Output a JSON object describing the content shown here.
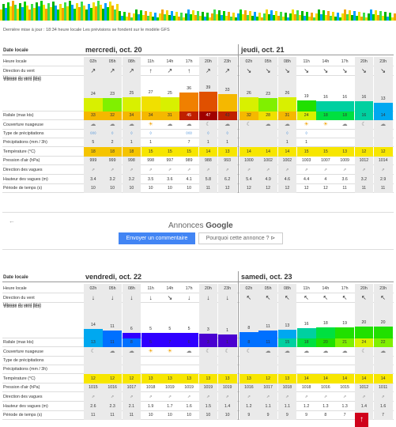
{
  "note": "Dernière mise à jour : 18:34 heure locale    Les prévisions se fondent sur le modèle GFS",
  "ad": {
    "back": "←",
    "annonces": "Annonces",
    "google": "Google",
    "btn_comment": "Envoyer un commentaire",
    "btn_why": "Pourquoi cette annonce ? ⊳"
  },
  "scroll_up": "↑",
  "row_labels": {
    "date": "Date locale",
    "heure": "Heure locale",
    "dir": "Direction du vent",
    "vit": "Vitesse du vent (kts)",
    "rafale": "Rafale (max kts)",
    "couv": "Couverture nuageuse",
    "typ": "Type de précipitations",
    "prec": "Précipitations (mm / 3h)",
    "temp": "Température (°C)",
    "press": "Pression d'air (hPa)",
    "dvag": "Direction des vagues",
    "hvag": "Hauteur des vagues (m)",
    "per": "Période de temps (s)"
  },
  "blocks": [
    {
      "days": [
        {
          "name": "mercredi, oct. 20",
          "hours": [
            "02h",
            "05h",
            "08h",
            "11h",
            "14h",
            "17h",
            "20h",
            "23h"
          ],
          "wind_dir": [
            "↗",
            "↗",
            "↗",
            "↑",
            "↗",
            "↑",
            "↗",
            "↗"
          ],
          "wind_speed": [
            24,
            23,
            25,
            27,
            25,
            36,
            39,
            33
          ],
          "gust": [
            33,
            32,
            34,
            34,
            31,
            45,
            47,
            43
          ],
          "cloud": [
            "☁",
            "☁",
            "☁",
            "☀",
            "☁",
            "☁",
            "☾",
            "☁"
          ],
          "precip_type": [
            "◊◊◊",
            "◊",
            "◊",
            "◊",
            "",
            "◊◊◊",
            "◊",
            "◊"
          ],
          "precip": [
            "5",
            "2",
            "1",
            "1",
            "",
            "7",
            "1",
            "1"
          ],
          "temp": [
            18,
            18,
            18,
            15,
            15,
            15,
            14,
            13
          ],
          "pressure": [
            999,
            999,
            998,
            998,
            997,
            989,
            988,
            993
          ],
          "wave_dir": [
            "⇗",
            "⇗",
            "⇗",
            "⇗",
            "⇗",
            "⇗",
            "⇗",
            "⇗"
          ],
          "wave_h": [
            "3.4",
            "3.2",
            "3.2",
            "3.5",
            "3.6",
            "4.1",
            "5.8",
            "6.2"
          ],
          "period": [
            10,
            10,
            10,
            10,
            10,
            10,
            11,
            12
          ]
        },
        {
          "name": "jeudi, oct. 21",
          "hours": [
            "02h",
            "05h",
            "08h",
            "11h",
            "14h",
            "17h",
            "20h",
            "23h"
          ],
          "wind_dir": [
            "↘",
            "↘",
            "↘",
            "↘",
            "↘",
            "↘",
            "↘",
            "↘"
          ],
          "wind_speed": [
            26,
            23,
            26,
            19,
            16,
            16,
            16,
            13
          ],
          "gust": [
            32,
            28,
            31,
            24,
            18,
            18,
            16,
            14
          ],
          "cloud": [
            "☾",
            "☁",
            "☁",
            "☀",
            "☀",
            "☁",
            "☾",
            "☁"
          ],
          "precip_type": [
            "",
            "",
            "◊",
            "◊",
            "",
            "",
            "",
            ""
          ],
          "precip": [
            "",
            "",
            "1",
            "1",
            "",
            "",
            "",
            ""
          ],
          "temp": [
            14,
            14,
            14,
            15,
            15,
            13,
            12,
            12
          ],
          "pressure": [
            1000,
            1002,
            1002,
            1003,
            1007,
            1009,
            1012,
            1014
          ],
          "wave_dir": [
            "⇗",
            "⇗",
            "⇗",
            "⇗",
            "⇗",
            "⇗",
            "⇗",
            "⇗"
          ],
          "wave_h": [
            "5.4",
            "4.9",
            "4.6",
            "4.4",
            "4",
            "3.6",
            "3.2",
            "2.9"
          ],
          "period": [
            12,
            12,
            12,
            12,
            12,
            11,
            11,
            11
          ]
        }
      ]
    },
    {
      "days": [
        {
          "name": "vendredi, oct. 22",
          "hours": [
            "02h",
            "05h",
            "08h",
            "11h",
            "14h",
            "17h",
            "20h",
            "23h"
          ],
          "wind_dir": [
            "↓",
            "↓",
            "↓",
            "↓",
            "↘",
            "↓",
            "↓",
            "↓"
          ],
          "wind_speed": [
            14,
            11,
            6,
            5,
            5,
            5,
            3,
            1
          ],
          "gust": [
            13,
            11,
            8,
            5,
            7,
            6,
            3,
            1
          ],
          "cloud": [
            "☾",
            "☁",
            "☁",
            "☀",
            "☀",
            "☁",
            "☾",
            "☾"
          ],
          "precip_type": [
            "",
            "",
            "",
            "",
            "",
            "",
            "",
            ""
          ],
          "precip": [
            "",
            "",
            "",
            "",
            "",
            "",
            "",
            ""
          ],
          "temp": [
            12,
            12,
            12,
            13,
            13,
            13,
            13,
            13
          ],
          "pressure": [
            1015,
            1016,
            1017,
            1018,
            1019,
            1019,
            1019,
            1019
          ],
          "wave_dir": [
            "⇗",
            "⇗",
            "⇗",
            "⇗",
            "⇗",
            "⇗",
            "⇗",
            "⇗"
          ],
          "wave_h": [
            "2.6",
            "2.3",
            "2.1",
            "1.9",
            "1.7",
            "1.6",
            "1.5",
            "1.4"
          ],
          "period": [
            11,
            11,
            11,
            10,
            10,
            10,
            10,
            10
          ]
        },
        {
          "name": "samedi, oct. 23",
          "hours": [
            "02h",
            "05h",
            "08h",
            "11h",
            "14h",
            "17h",
            "20h",
            "23h"
          ],
          "wind_dir": [
            "↖",
            "↖",
            "↖",
            "↖",
            "↖",
            "↖",
            "↖",
            "↖"
          ],
          "wind_speed": [
            8,
            11,
            13,
            16,
            18,
            19,
            20,
            20
          ],
          "gust": [
            8,
            11,
            15,
            18,
            20,
            21,
            24,
            22
          ],
          "cloud": [
            "☾",
            "☁",
            "☁",
            "☁",
            "☁",
            "☁",
            "☾",
            "☁"
          ],
          "precip_type": [
            "",
            "",
            "",
            "",
            "",
            "",
            "",
            ""
          ],
          "precip": [
            "",
            "",
            "",
            "",
            "",
            "",
            "",
            ""
          ],
          "temp": [
            13,
            12,
            13,
            14,
            14,
            14,
            14,
            14
          ],
          "pressure": [
            1016,
            1017,
            1018,
            1018,
            1016,
            1015,
            1012,
            1011
          ],
          "wave_dir": [
            "⇗",
            "⇗",
            "⇗",
            "⇗",
            "⇗",
            "⇗",
            "⇗",
            "⇗"
          ],
          "wave_h": [
            "1.2",
            "1.1",
            "1.1",
            "1.2",
            "1.3",
            "1.3",
            "1.4",
            "1.6"
          ],
          "period": [
            9,
            9,
            9,
            9,
            8,
            7,
            7,
            7
          ]
        }
      ]
    }
  ]
}
